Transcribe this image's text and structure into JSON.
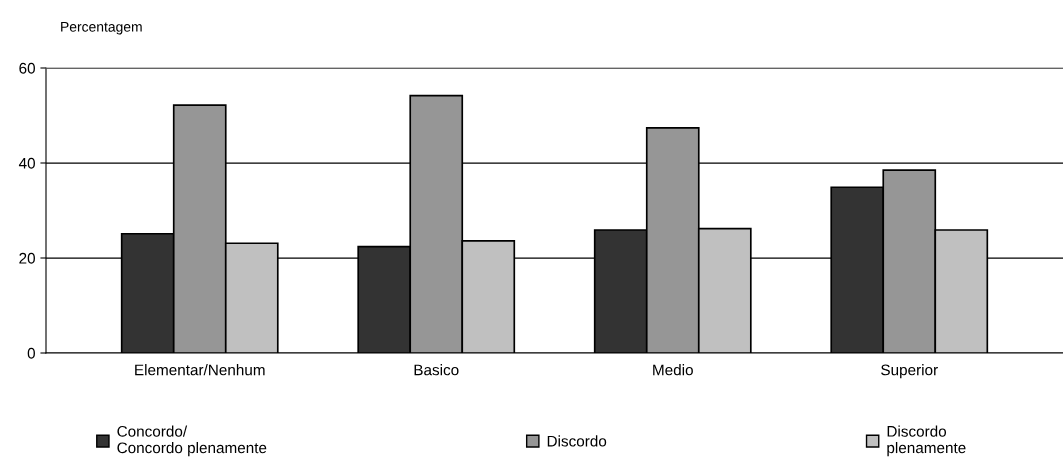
{
  "chart_data": {
    "type": "bar",
    "ylabel": "Percentagem",
    "categories": [
      "Elementar/Nenhum",
      "Basico",
      "Medio",
      "Superior"
    ],
    "series": [
      {
        "name": "Concordo/\nConcordo plenamente",
        "color": "#333333",
        "values": [
          25.1,
          22.4,
          25.9,
          34.9
        ]
      },
      {
        "name": "Discordo",
        "color": "#969696",
        "values": [
          52.2,
          54.2,
          47.4,
          38.5
        ]
      },
      {
        "name": "Discordo\nplenamente",
        "color": "#c0c0c0",
        "values": [
          23.1,
          23.6,
          26.2,
          25.9
        ]
      }
    ],
    "ylim": [
      0,
      60
    ],
    "yticks": [
      0,
      20,
      40,
      60
    ],
    "grid": "y",
    "legend": "bottom"
  }
}
